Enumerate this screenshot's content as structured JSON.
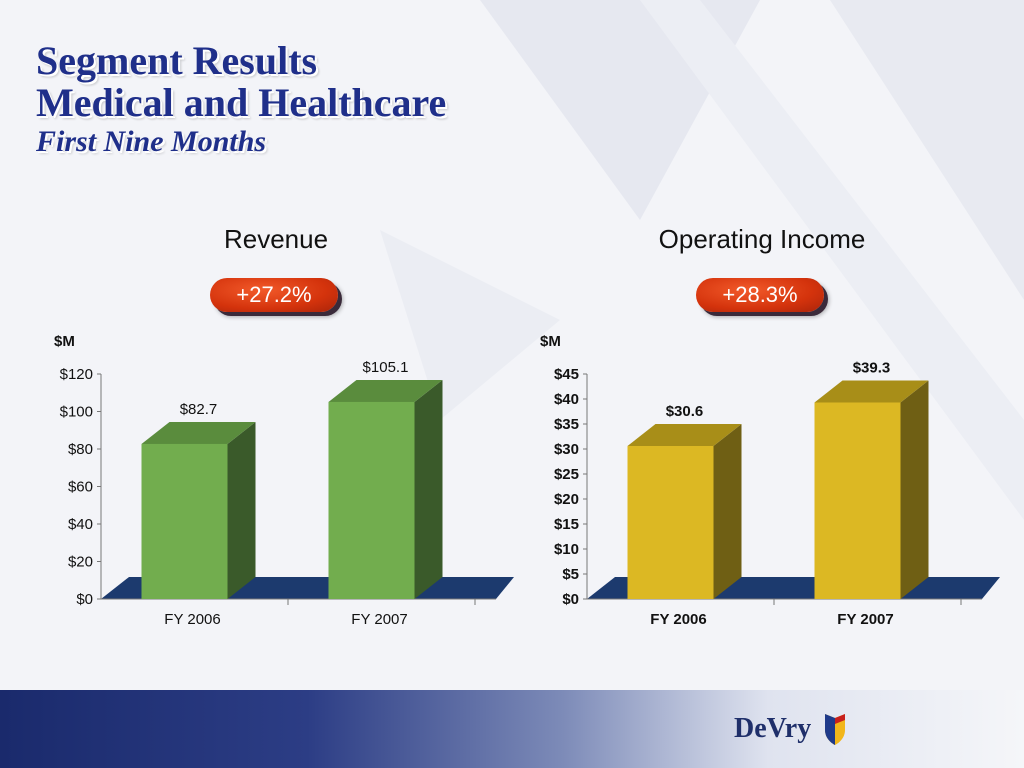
{
  "slide": {
    "title_line1": "Segment Results",
    "title_line2": "Medical and Healthcare",
    "subtitle": "First Nine Months",
    "logo_text": "DeVry"
  },
  "colors": {
    "title": "#1f2f8a",
    "badge": "#d4330c",
    "floor": "#1c3a6e",
    "bottom_band": "#1a2a6c"
  },
  "chart_data": [
    {
      "type": "bar",
      "title": "Revenue",
      "growth": "+27.2%",
      "unit_label": "$M",
      "categories": [
        "FY 2006",
        "FY 2007"
      ],
      "values": [
        82.7,
        105.1
      ],
      "value_labels": [
        "$82.7",
        "$105.1"
      ],
      "ylim": [
        0,
        120
      ],
      "yticks": [
        0,
        20,
        40,
        60,
        80,
        100,
        120
      ],
      "ytick_labels": [
        "$0",
        "$20",
        "$40",
        "$60",
        "$80",
        "$100",
        "$120"
      ],
      "style": {
        "front": "#72ad4e",
        "top": "#5a8c3d",
        "side": "#3a5a2a",
        "label_weight": "normal"
      }
    },
    {
      "type": "bar",
      "title": "Operating Income",
      "growth": "+28.3%",
      "unit_label": "$M",
      "categories": [
        "FY 2006",
        "FY 2007"
      ],
      "values": [
        30.6,
        39.3
      ],
      "value_labels": [
        "$30.6",
        "$39.3"
      ],
      "ylim": [
        0,
        45
      ],
      "yticks": [
        0,
        5,
        10,
        15,
        20,
        25,
        30,
        35,
        40,
        45
      ],
      "ytick_labels": [
        "$0",
        "$5",
        "$10",
        "$15",
        "$20",
        "$25",
        "$30",
        "$35",
        "$40",
        "$45"
      ],
      "style": {
        "front": "#dcb823",
        "top": "#a88e18",
        "side": "#6f5f14",
        "label_weight": "bold"
      }
    }
  ]
}
